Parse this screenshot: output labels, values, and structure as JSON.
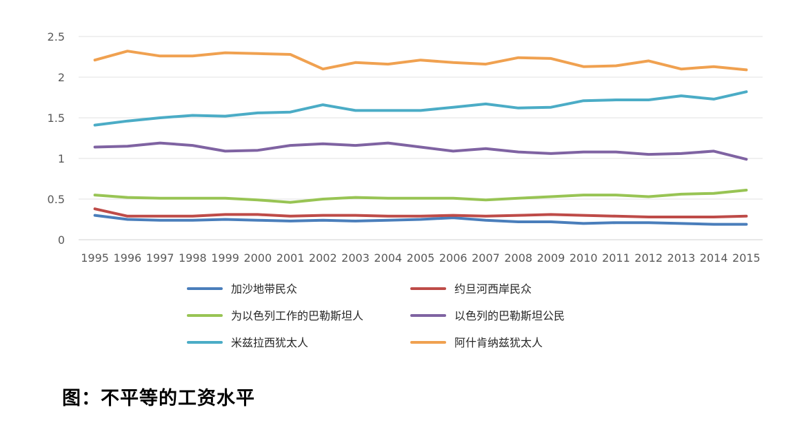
{
  "chart_data": {
    "type": "line",
    "x": [
      "1995",
      "1996",
      "1997",
      "1998",
      "1999",
      "2000",
      "2001",
      "2002",
      "2003",
      "2004",
      "2005",
      "2006",
      "2007",
      "2008",
      "2009",
      "2010",
      "2011",
      "2012",
      "2013",
      "2014",
      "2015"
    ],
    "ylim": [
      0,
      2.5
    ],
    "yticks": [
      0,
      0.5,
      1,
      1.5,
      2,
      2.5
    ],
    "ytick_labels": [
      "0",
      "0.5",
      "1",
      "1.5",
      "2",
      "2.5"
    ],
    "grid": "horizontal",
    "legend_position": "bottom",
    "series": [
      {
        "name": "加沙地带民众",
        "color": "#4A7EBB",
        "values": [
          0.3,
          0.25,
          0.24,
          0.24,
          0.25,
          0.24,
          0.23,
          0.24,
          0.23,
          0.24,
          0.25,
          0.27,
          0.24,
          0.22,
          0.22,
          0.2,
          0.21,
          0.21,
          0.2,
          0.19,
          0.19
        ]
      },
      {
        "name": "约旦河西岸民众",
        "color": "#BE4B48",
        "values": [
          0.38,
          0.29,
          0.29,
          0.29,
          0.31,
          0.31,
          0.29,
          0.3,
          0.3,
          0.29,
          0.29,
          0.3,
          0.29,
          0.3,
          0.31,
          0.3,
          0.29,
          0.28,
          0.28,
          0.28,
          0.29
        ]
      },
      {
        "name": "为以色列工作的巴勒斯坦人",
        "color": "#98C454",
        "values": [
          0.55,
          0.52,
          0.51,
          0.51,
          0.51,
          0.49,
          0.46,
          0.5,
          0.52,
          0.51,
          0.51,
          0.51,
          0.49,
          0.51,
          0.53,
          0.55,
          0.55,
          0.53,
          0.56,
          0.57,
          0.61
        ]
      },
      {
        "name": "以色列的巴勒斯坦公民",
        "color": "#7F63A2",
        "values": [
          1.14,
          1.15,
          1.19,
          1.16,
          1.09,
          1.1,
          1.16,
          1.18,
          1.16,
          1.19,
          1.14,
          1.09,
          1.12,
          1.08,
          1.06,
          1.08,
          1.08,
          1.05,
          1.06,
          1.09,
          0.99
        ]
      },
      {
        "name": "米兹拉西犹太人",
        "color": "#4BACC6",
        "values": [
          1.41,
          1.46,
          1.5,
          1.53,
          1.52,
          1.56,
          1.57,
          1.66,
          1.59,
          1.59,
          1.59,
          1.63,
          1.67,
          1.62,
          1.63,
          1.71,
          1.72,
          1.72,
          1.77,
          1.73,
          1.82
        ]
      },
      {
        "name": "阿什肯纳兹犹太人",
        "color": "#F0A150",
        "values": [
          2.21,
          2.32,
          2.26,
          2.26,
          2.3,
          2.29,
          2.28,
          2.1,
          2.18,
          2.16,
          2.21,
          2.18,
          2.16,
          2.24,
          2.23,
          2.13,
          2.14,
          2.2,
          2.1,
          2.13,
          2.09
        ]
      }
    ]
  },
  "caption": "图：不平等的工资水平"
}
